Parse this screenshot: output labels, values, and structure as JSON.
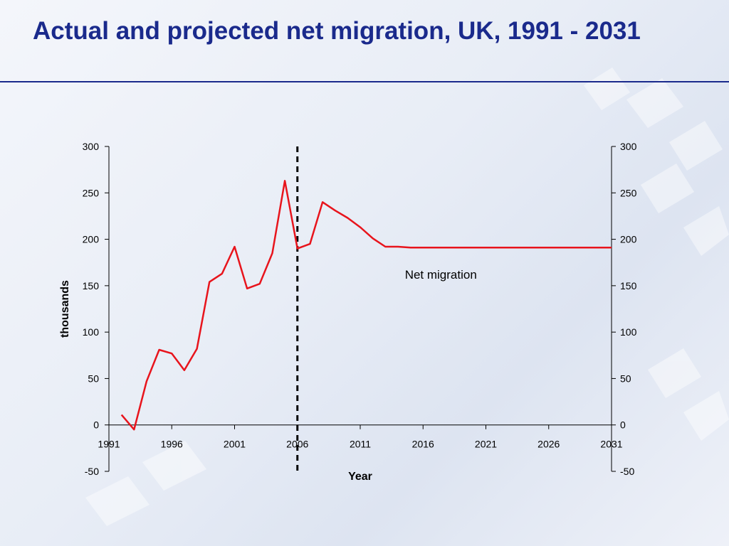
{
  "slide": {
    "title": "Actual and projected net migration, UK, 1991 - 2031"
  },
  "colors": {
    "title": "#1a2a8c",
    "series": "#e8141c",
    "axis": "#000000"
  },
  "chart_data": {
    "type": "line",
    "title": "",
    "xlabel": "Year",
    "ylabel": "thousands",
    "xlim": [
      1991,
      2031
    ],
    "ylim": [
      -50,
      300
    ],
    "x_ticks": [
      1991,
      1996,
      2001,
      2006,
      2011,
      2016,
      2021,
      2026,
      2031
    ],
    "y_ticks": [
      -50,
      0,
      50,
      100,
      150,
      200,
      250,
      300
    ],
    "secondary_y_axis": true,
    "grid": false,
    "divider": {
      "x": 2006,
      "style": "dashed"
    },
    "annotations": [
      {
        "text": "Net migration",
        "x": 2016,
        "y": 162
      }
    ],
    "series": [
      {
        "name": "Net migration",
        "x": [
          1992,
          1993,
          1994,
          1995,
          1996,
          1997,
          1998,
          1999,
          2000,
          2001,
          2002,
          2003,
          2004,
          2005,
          2006,
          2007,
          2008,
          2009,
          2010,
          2011,
          2012,
          2013,
          2014,
          2015,
          2016,
          2017,
          2018,
          2019,
          2020,
          2021,
          2022,
          2023,
          2024,
          2025,
          2026,
          2027,
          2028,
          2029,
          2030,
          2031
        ],
        "y": [
          11,
          -5,
          47,
          81,
          77,
          59,
          82,
          154,
          163,
          192,
          147,
          152,
          185,
          263,
          190,
          195,
          240,
          231,
          223,
          213,
          201,
          192,
          192,
          191,
          191,
          191,
          191,
          191,
          191,
          191,
          191,
          191,
          191,
          191,
          191,
          191,
          191,
          191,
          191,
          191
        ]
      }
    ]
  }
}
